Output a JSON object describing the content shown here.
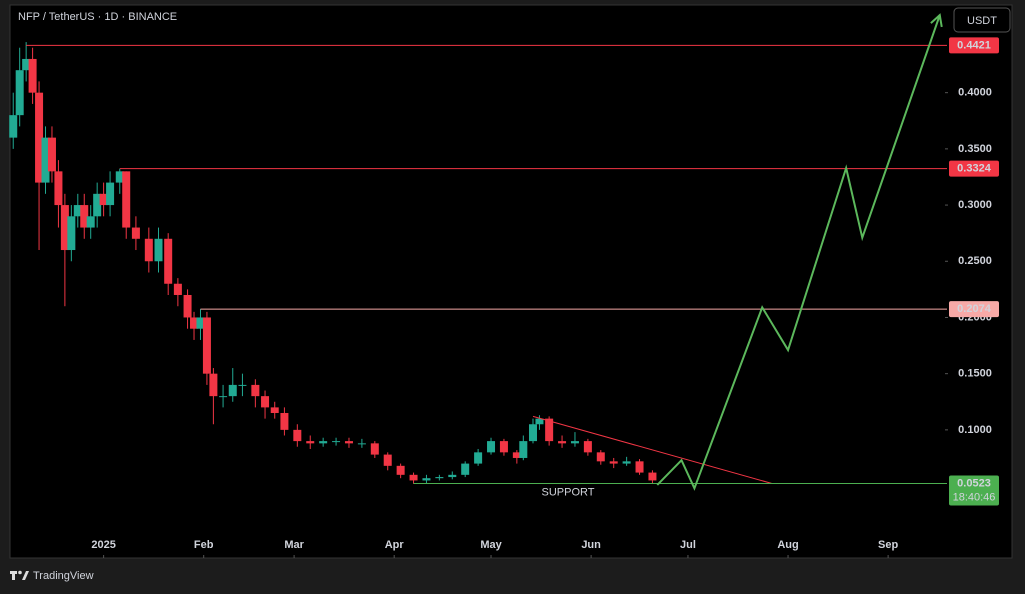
{
  "chart_data": {
    "type": "candlestick",
    "title": "NFP / TetherUS · 1D · BINANCE",
    "currency_button": "USDT",
    "brand": "TradingView",
    "up_color": "#22ab94",
    "down_color": "#f23645",
    "x": [
      -28,
      -26,
      -24,
      -22,
      -20,
      -18,
      -16,
      -14,
      -12,
      -10,
      -8,
      -6,
      -4,
      -2,
      0,
      2,
      5,
      7,
      10,
      14,
      17,
      20,
      23,
      26,
      28,
      30,
      32,
      34,
      37,
      40,
      43,
      47,
      50,
      53,
      56,
      60,
      64,
      68,
      72,
      76,
      80,
      84,
      88,
      92,
      96,
      100,
      104,
      108,
      112,
      116,
      120,
      124,
      128,
      130,
      133,
      135,
      138,
      142,
      146,
      150,
      154,
      158,
      162,
      166,
      170
    ],
    "open": [
      0.36,
      0.38,
      0.42,
      0.43,
      0.4,
      0.32,
      0.36,
      0.33,
      0.3,
      0.26,
      0.29,
      0.3,
      0.28,
      0.29,
      0.31,
      0.3,
      0.32,
      0.33,
      0.28,
      0.27,
      0.25,
      0.27,
      0.23,
      0.22,
      0.2,
      0.19,
      0.2,
      0.15,
      0.13,
      0.13,
      0.14,
      0.14,
      0.13,
      0.12,
      0.115,
      0.1,
      0.09,
      0.088,
      0.09,
      0.09,
      0.088,
      0.088,
      0.078,
      0.068,
      0.06,
      0.055,
      0.057,
      0.058,
      0.06,
      0.07,
      0.08,
      0.09,
      0.08,
      0.075,
      0.09,
      0.105,
      0.11,
      0.09,
      0.088,
      0.09,
      0.08,
      0.072,
      0.07,
      0.072,
      0.062
    ],
    "high": [
      0.4,
      0.44,
      0.445,
      0.44,
      0.41,
      0.37,
      0.37,
      0.34,
      0.31,
      0.3,
      0.31,
      0.31,
      0.3,
      0.32,
      0.32,
      0.33,
      0.3324,
      0.33,
      0.29,
      0.28,
      0.28,
      0.275,
      0.235,
      0.225,
      0.205,
      0.2074,
      0.205,
      0.155,
      0.14,
      0.155,
      0.15,
      0.145,
      0.135,
      0.125,
      0.12,
      0.105,
      0.095,
      0.093,
      0.093,
      0.093,
      0.092,
      0.09,
      0.08,
      0.07,
      0.062,
      0.06,
      0.06,
      0.063,
      0.072,
      0.083,
      0.093,
      0.092,
      0.082,
      0.095,
      0.11,
      0.113,
      0.112,
      0.095,
      0.098,
      0.092,
      0.082,
      0.075,
      0.076,
      0.074,
      0.064
    ],
    "low": [
      0.35,
      0.37,
      0.41,
      0.39,
      0.26,
      0.31,
      0.32,
      0.28,
      0.21,
      0.25,
      0.28,
      0.27,
      0.27,
      0.28,
      0.29,
      0.29,
      0.31,
      0.27,
      0.26,
      0.24,
      0.24,
      0.22,
      0.21,
      0.19,
      0.18,
      0.18,
      0.14,
      0.105,
      0.12,
      0.125,
      0.13,
      0.12,
      0.11,
      0.11,
      0.095,
      0.085,
      0.083,
      0.085,
      0.086,
      0.084,
      0.084,
      0.075,
      0.064,
      0.057,
      0.052,
      0.052,
      0.055,
      0.056,
      0.058,
      0.068,
      0.078,
      0.077,
      0.07,
      0.073,
      0.088,
      0.1,
      0.086,
      0.084,
      0.085,
      0.077,
      0.069,
      0.066,
      0.068,
      0.06,
      0.052
    ],
    "close": [
      0.38,
      0.42,
      0.43,
      0.4,
      0.32,
      0.36,
      0.33,
      0.3,
      0.26,
      0.29,
      0.3,
      0.28,
      0.29,
      0.31,
      0.3,
      0.32,
      0.33,
      0.28,
      0.27,
      0.25,
      0.27,
      0.23,
      0.22,
      0.2,
      0.19,
      0.2,
      0.15,
      0.13,
      0.13,
      0.14,
      0.14,
      0.13,
      0.12,
      0.115,
      0.1,
      0.09,
      0.088,
      0.09,
      0.09,
      0.088,
      0.088,
      0.078,
      0.068,
      0.06,
      0.055,
      0.057,
      0.058,
      0.06,
      0.07,
      0.08,
      0.09,
      0.08,
      0.075,
      0.09,
      0.105,
      0.11,
      0.09,
      0.088,
      0.09,
      0.08,
      0.072,
      0.07,
      0.072,
      0.062,
      0.055
    ],
    "xlim": [
      -29,
      260
    ],
    "xticks": [
      {
        "value": 0,
        "label": "2025"
      },
      {
        "value": 31,
        "label": "Feb"
      },
      {
        "value": 59,
        "label": "Mar"
      },
      {
        "value": 90,
        "label": "Apr"
      },
      {
        "value": 120,
        "label": "May"
      },
      {
        "value": 151,
        "label": "Jun"
      },
      {
        "value": 181,
        "label": "Jul"
      },
      {
        "value": 212,
        "label": "Aug"
      },
      {
        "value": 243,
        "label": "Sep"
      }
    ],
    "ylim": [
      -0.014,
      0.478
    ],
    "yticks": [
      {
        "value": 0.1,
        "label": "0.1000"
      },
      {
        "value": 0.15,
        "label": "0.1500"
      },
      {
        "value": 0.2,
        "label": "0.2000"
      },
      {
        "value": 0.25,
        "label": "0.2500"
      },
      {
        "value": 0.3,
        "label": "0.3000"
      },
      {
        "value": 0.35,
        "label": "0.3500"
      },
      {
        "value": 0.4,
        "label": "0.4000"
      }
    ],
    "levels": [
      {
        "value": 0.4421,
        "from": -24,
        "color": "#f23645"
      },
      {
        "value": 0.3324,
        "from": 5,
        "color": "#f23645"
      },
      {
        "value": 0.2074,
        "from": 30,
        "color": "#f7a9a7"
      },
      {
        "value": 0.0523,
        "from": 96,
        "color": "#4caf50"
      }
    ],
    "support_label": "SUPPORT",
    "countdown": "18:40:46",
    "trendline": {
      "x": [
        133,
        207
      ],
      "y": [
        0.112,
        0.0523
      ],
      "color": "#f23645"
    },
    "projection": {
      "x": [
        171.5,
        179,
        183,
        204,
        212,
        230,
        235,
        259
      ],
      "y": [
        0.051,
        0.073,
        0.048,
        0.209,
        0.171,
        0.333,
        0.271,
        0.469
      ],
      "color": "#5cb85c"
    }
  }
}
